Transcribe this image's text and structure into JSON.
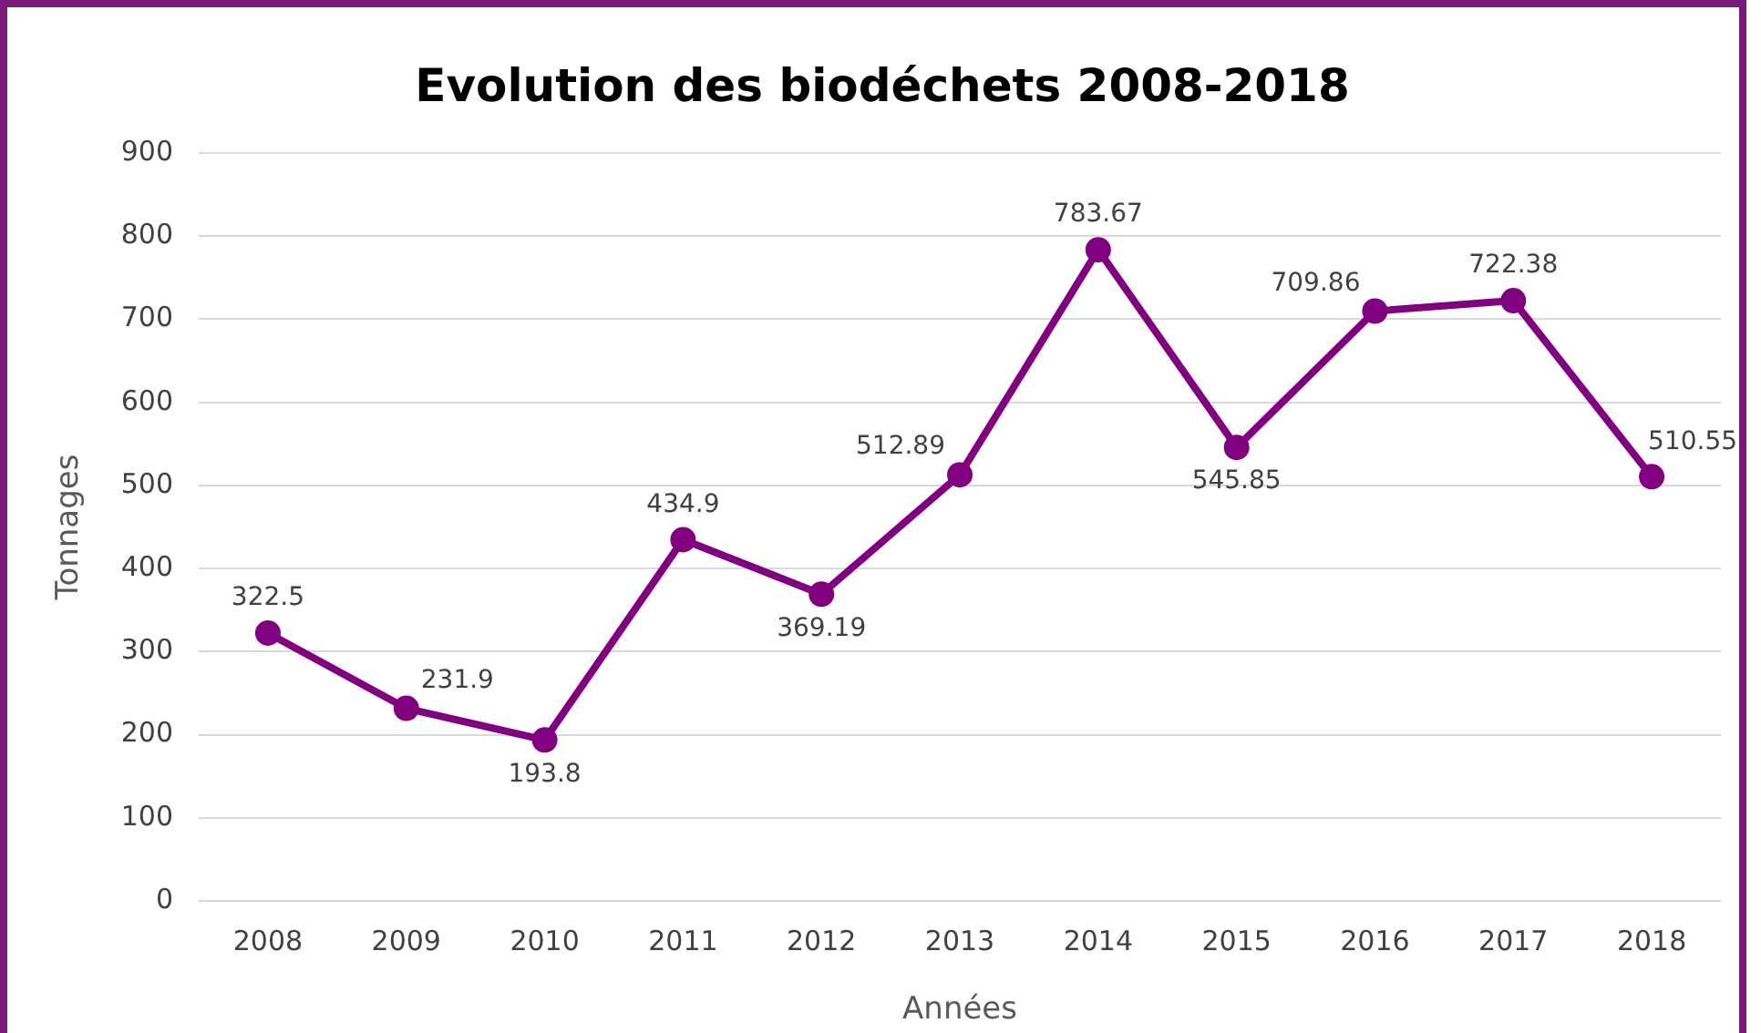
{
  "chart_data": {
    "type": "line",
    "title": "Evolution des biodéchets 2008-2018",
    "xlabel": "Années",
    "ylabel": "Tonnages",
    "categories": [
      "2008",
      "2009",
      "2010",
      "2011",
      "2012",
      "2013",
      "2014",
      "2015",
      "2016",
      "2017",
      "2018"
    ],
    "series": [
      {
        "color": "#800080",
        "values": [
          322.5,
          231.9,
          193.8,
          434.9,
          369.19,
          512.89,
          783.67,
          545.85,
          709.86,
          722.38,
          510.55
        ]
      }
    ],
    "ylim": [
      0,
      900
    ],
    "yticks": [
      0,
      100,
      200,
      300,
      400,
      500,
      600,
      700,
      800,
      900
    ],
    "grid": "y",
    "marker": "circle",
    "line_style": "solid",
    "data_labels": true,
    "legend": false
  }
}
